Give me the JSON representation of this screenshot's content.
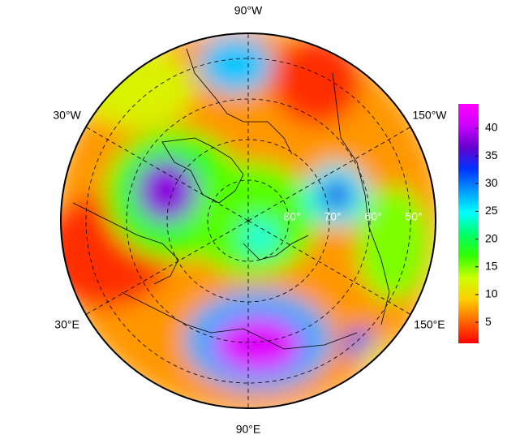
{
  "map": {
    "meridians": [
      {
        "value": -90,
        "label": "90°W"
      },
      {
        "value": -30,
        "label": "30°W"
      },
      {
        "value": -150,
        "label": "150°W"
      },
      {
        "value": 30,
        "label": "30°E"
      },
      {
        "value": 150,
        "label": "150°E"
      },
      {
        "value": 90,
        "label": "90°E"
      }
    ],
    "parallels": [
      {
        "value": 80,
        "label": "80°"
      },
      {
        "value": 70,
        "label": "70°"
      },
      {
        "value": 60,
        "label": "60°"
      },
      {
        "value": 50,
        "label": "50°"
      }
    ],
    "field": [
      7,
      12,
      3,
      3,
      17,
      16,
      15,
      38,
      27,
      25,
      35,
      24,
      28,
      42,
      32,
      10
    ]
  },
  "colorbar": {
    "lim": [
      1.2,
      44.4
    ],
    "ticks": [
      5,
      10,
      15,
      20,
      25,
      30,
      35,
      40
    ],
    "colors": [
      "#ff0000",
      "#ff6600",
      "#ffcc00",
      "#ccff00",
      "#33ff00",
      "#00ff66",
      "#00ffff",
      "#0099ff",
      "#0033ff",
      "#6600cc",
      "#cc00ff",
      "#ff00ff"
    ]
  }
}
